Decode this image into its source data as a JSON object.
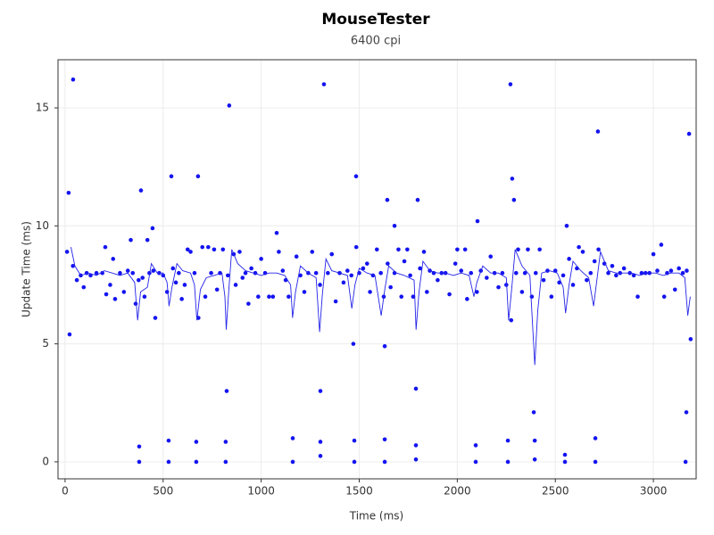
{
  "chart_data": {
    "type": "scatter",
    "title": "MouseTester",
    "subtitle": "6400 cpi",
    "x_label": "Time (ms)",
    "y_label": "Update Time (ms)",
    "xlim": [
      -36,
      3218
    ],
    "ylim": [
      -0.72,
      17.04
    ],
    "xticks": [
      0,
      500,
      1000,
      1500,
      2000,
      2500,
      3000
    ],
    "yticks": [
      0,
      5,
      10,
      15
    ],
    "grid": true,
    "series": [
      {
        "style": "points",
        "color": "#1414f0",
        "x": [
          41,
          18,
          23,
          10,
          837,
          1320,
          2271,
          2717,
          3182,
          3190,
          387,
          542,
          678,
          446,
          1484,
          2280,
          2289,
          1643,
          1798,
          1680,
          2103,
          2558,
          1079,
          1470,
          1630,
          2390,
          3168,
          824,
          1302,
          1789,
          378,
          378,
          528,
          528,
          669,
          669,
          819,
          819,
          1161,
          1161,
          1302,
          1302,
          1475,
          1475,
          1630,
          1630,
          1789,
          1789,
          2094,
          2094,
          2258,
          2258,
          2395,
          2395,
          2549,
          2549,
          2704,
          2704,
          3164,
          40,
          60,
          80,
          95,
          110,
          130,
          160,
          190,
          205,
          210,
          230,
          245,
          255,
          280,
          300,
          320,
          335,
          345,
          360,
          375,
          395,
          405,
          420,
          430,
          450,
          460,
          480,
          500,
          520,
          550,
          565,
          580,
          595,
          610,
          625,
          640,
          660,
          680,
          700,
          715,
          730,
          745,
          760,
          775,
          790,
          805,
          830,
          860,
          870,
          890,
          905,
          920,
          935,
          950,
          970,
          985,
          1000,
          1020,
          1040,
          1060,
          1090,
          1110,
          1125,
          1140,
          1180,
          1200,
          1220,
          1240,
          1260,
          1280,
          1300,
          1340,
          1360,
          1380,
          1400,
          1420,
          1440,
          1460,
          1485,
          1500,
          1520,
          1540,
          1555,
          1570,
          1590,
          1610,
          1625,
          1645,
          1660,
          1680,
          1700,
          1715,
          1730,
          1745,
          1760,
          1775,
          1810,
          1830,
          1845,
          1860,
          1880,
          1900,
          1920,
          1940,
          1960,
          1990,
          2000,
          2020,
          2040,
          2050,
          2070,
          2100,
          2120,
          2150,
          2170,
          2190,
          2210,
          2230,
          2250,
          2275,
          2300,
          2310,
          2330,
          2345,
          2360,
          2380,
          2400,
          2420,
          2440,
          2460,
          2480,
          2500,
          2520,
          2540,
          2570,
          2590,
          2610,
          2620,
          2640,
          2660,
          2680,
          2700,
          2720,
          2750,
          2770,
          2790,
          2810,
          2830,
          2850,
          2880,
          2900,
          2920,
          2940,
          2960,
          2980,
          3000,
          3020,
          3040,
          3055,
          3070,
          3090,
          3110,
          3130,
          3150,
          3170
        ],
        "values": [
          16.2,
          11.4,
          5.4,
          8.9,
          15.1,
          16.0,
          16.0,
          14.0,
          13.9,
          5.2,
          11.5,
          12.1,
          12.1,
          9.9,
          12.1,
          12.0,
          11.1,
          11.1,
          11.1,
          10.0,
          10.2,
          10.0,
          9.7,
          5.0,
          4.9,
          2.1,
          2.1,
          3.0,
          3.0,
          3.1,
          0.65,
          0,
          0.9,
          0,
          0.85,
          0,
          0.85,
          0,
          1.0,
          0,
          0.85,
          0.25,
          0.9,
          0,
          0.95,
          0,
          0.7,
          0.1,
          0.7,
          0,
          0.9,
          0,
          0.9,
          0.1,
          0.3,
          0,
          1.0,
          0,
          0,
          8.3,
          7.7,
          7.9,
          7.4,
          8.0,
          7.9,
          8.0,
          8.0,
          9.1,
          7.1,
          7.5,
          8.6,
          6.9,
          8.0,
          7.2,
          8.1,
          9.4,
          8.0,
          6.7,
          7.7,
          7.8,
          7.0,
          9.4,
          8.0,
          8.1,
          6.1,
          8.0,
          7.9,
          7.2,
          8.2,
          7.6,
          8.0,
          6.9,
          7.5,
          9.0,
          8.9,
          8.0,
          6.1,
          9.1,
          7.0,
          9.1,
          8.0,
          9.0,
          7.3,
          8.0,
          9.0,
          7.9,
          8.8,
          7.5,
          8.9,
          7.8,
          8.0,
          6.7,
          8.2,
          8.0,
          7.0,
          8.6,
          8.0,
          7.0,
          7.0,
          8.9,
          8.1,
          7.7,
          7.0,
          8.7,
          7.9,
          7.2,
          8.0,
          8.9,
          8.0,
          7.5,
          8.0,
          8.8,
          6.8,
          8.0,
          7.6,
          8.1,
          7.9,
          9.1,
          8.0,
          8.2,
          8.4,
          7.2,
          7.9,
          9.0,
          8.0,
          7.0,
          8.4,
          7.4,
          8.0,
          9.0,
          7.0,
          8.5,
          9.0,
          7.9,
          7.0,
          8.2,
          8.9,
          7.2,
          8.1,
          8.0,
          7.7,
          8.0,
          8.0,
          7.1,
          8.4,
          9.0,
          8.1,
          9.0,
          6.9,
          8.0,
          7.2,
          8.1,
          7.8,
          8.7,
          8.0,
          7.4,
          8.0,
          7.5,
          6.0,
          8.0,
          9.0,
          7.2,
          8.0,
          9.0,
          7.0,
          8.0,
          9.0,
          7.7,
          8.1,
          7.0,
          8.1,
          7.6,
          7.9,
          8.6,
          7.5,
          8.2,
          9.1,
          8.9,
          7.7,
          8.0,
          8.5,
          9.0,
          8.4,
          8.0,
          8.3,
          7.9,
          8.0,
          8.2,
          8.0,
          7.9,
          7.0,
          8.0,
          8.0,
          8.0,
          8.8,
          8.1,
          9.2,
          7.0,
          8.0,
          8.1,
          7.3,
          8.2,
          8.0,
          8.1
        ]
      },
      {
        "style": "line",
        "color": "#2424e8",
        "x": [
          30,
          50,
          80,
          120,
          160,
          200,
          240,
          280,
          320,
          355,
          370,
          385,
          420,
          440,
          470,
          500,
          520,
          530,
          545,
          570,
          600,
          640,
          660,
          672,
          690,
          720,
          760,
          800,
          815,
          822,
          835,
          850,
          880,
          920,
          960,
          1000,
          1040,
          1080,
          1120,
          1150,
          1160,
          1175,
          1200,
          1240,
          1280,
          1298,
          1312,
          1330,
          1360,
          1400,
          1440,
          1462,
          1478,
          1500,
          1540,
          1580,
          1612,
          1630,
          1650,
          1690,
          1730,
          1780,
          1790,
          1805,
          1825,
          1860,
          1900,
          1940,
          1980,
          2020,
          2060,
          2085,
          2100,
          2130,
          2170,
          2210,
          2250,
          2262,
          2278,
          2295,
          2330,
          2370,
          2395,
          2410,
          2430,
          2470,
          2510,
          2540,
          2552,
          2570,
          2590,
          2630,
          2670,
          2695,
          2710,
          2730,
          2770,
          2810,
          2850,
          2890,
          2930,
          2970,
          3010,
          3050,
          3090,
          3130,
          3160,
          3175,
          3188
        ],
        "values": [
          9.1,
          8.3,
          7.9,
          8.0,
          7.9,
          8.1,
          8.0,
          7.9,
          8.0,
          7.6,
          6.0,
          7.2,
          7.4,
          8.4,
          8.0,
          8.0,
          7.6,
          6.6,
          7.4,
          8.4,
          8.1,
          8.0,
          7.5,
          6.0,
          7.3,
          7.8,
          7.9,
          8.0,
          7.0,
          5.6,
          7.3,
          9.0,
          8.4,
          8.1,
          8.0,
          7.9,
          8.0,
          8.0,
          7.9,
          7.5,
          6.1,
          7.2,
          8.3,
          8.0,
          7.8,
          5.5,
          7.1,
          8.6,
          8.1,
          8.0,
          7.9,
          6.5,
          7.5,
          8.2,
          8.0,
          7.9,
          6.2,
          7.3,
          8.3,
          8.0,
          7.9,
          7.7,
          5.6,
          7.2,
          8.5,
          8.1,
          8.0,
          8.0,
          7.9,
          8.0,
          7.9,
          7.0,
          7.6,
          8.3,
          8.0,
          8.0,
          7.8,
          6.0,
          7.4,
          9.0,
          8.3,
          7.9,
          4.1,
          6.4,
          8.0,
          8.1,
          8.0,
          7.4,
          6.3,
          7.5,
          8.5,
          8.1,
          7.8,
          6.6,
          7.6,
          8.9,
          8.1,
          8.0,
          8.0,
          8.0,
          7.9,
          8.0,
          8.0,
          7.9,
          8.0,
          8.0,
          7.8,
          6.2,
          7.0
        ]
      }
    ]
  }
}
